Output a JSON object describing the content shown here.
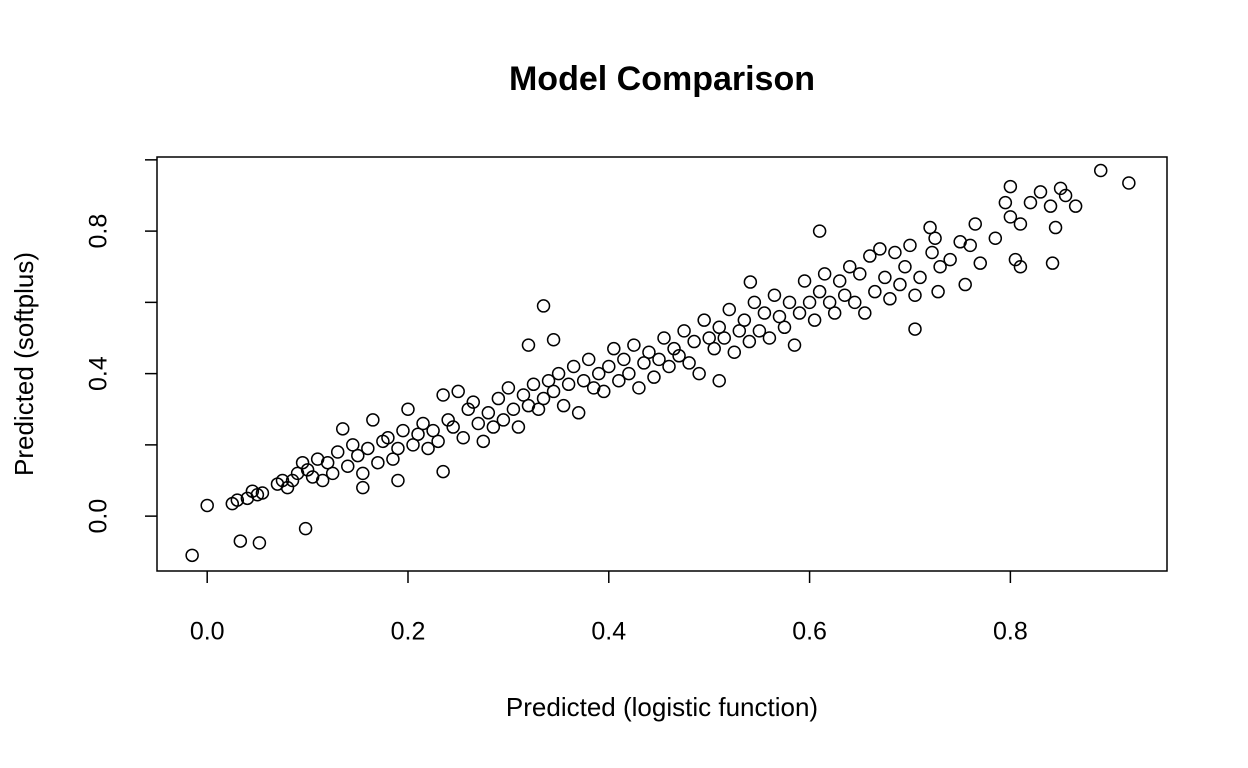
{
  "chart_data": {
    "type": "scatter",
    "title": "Model Comparison",
    "x_label": "Predicted (logistic function)",
    "y_label": "Predicted (softplus)",
    "color": "#000000",
    "xlim": [
      -0.05,
      0.956
    ],
    "ylim": [
      -0.154,
      1.008
    ],
    "xticks": [
      {
        "value": 0,
        "label": "0.0"
      },
      {
        "value": 0.2,
        "label": "0.2"
      },
      {
        "value": 0.4,
        "label": "0.4"
      },
      {
        "value": 0.6,
        "label": "0.6"
      },
      {
        "value": 0.8,
        "label": "0.8"
      }
    ],
    "yticks": [
      {
        "value": 0,
        "label": "0.0"
      },
      {
        "value": 0.2,
        "label": null
      },
      {
        "value": 0.4,
        "label": "0.4"
      },
      {
        "value": 0.6,
        "label": null
      },
      {
        "value": 0.8,
        "label": "0.8"
      },
      {
        "value": 1.0,
        "label": null
      }
    ],
    "x": [
      0.025,
      0.03,
      0.04,
      0.045,
      0.05,
      0.055,
      0.07,
      0.075,
      0.08,
      0.085,
      0.09,
      0.095,
      0.1,
      0.105,
      0.11,
      0.115,
      0.12,
      0.125,
      0.13,
      0.135,
      0.14,
      0.145,
      0.15,
      0.155,
      0.16,
      0.165,
      0.17,
      0.175,
      0.18,
      0.185,
      0.19,
      0.195,
      0.2,
      0.205,
      0.21,
      0.215,
      0.22,
      0.225,
      0.23,
      0.235,
      0.24,
      0.245,
      0.25,
      0.255,
      0.26,
      0.265,
      0.27,
      0.275,
      0.28,
      0.285,
      0.29,
      0.295,
      0.3,
      0.305,
      0.31,
      0.315,
      0.32,
      0.325,
      0.33,
      0.335,
      0.34,
      0.345,
      0.35,
      0.355,
      0.36,
      0.365,
      0.37,
      0.375,
      0.38,
      0.385,
      0.39,
      0.395,
      0.4,
      0.405,
      0.41,
      0.415,
      0.42,
      0.425,
      0.43,
      0.435,
      0.44,
      0.445,
      0.45,
      0.455,
      0.46,
      0.465,
      0.47,
      0.475,
      0.48,
      0.485,
      0.49,
      0.495,
      0.5,
      0.505,
      0.51,
      0.515,
      0.52,
      0.525,
      0.53,
      0.535,
      0.54,
      0.545,
      0.55,
      0.555,
      0.56,
      0.565,
      0.57,
      0.575,
      0.58,
      0.585,
      0.59,
      0.595,
      0.6,
      0.605,
      0.61,
      0.615,
      0.62,
      0.625,
      0.63,
      0.635,
      0.64,
      0.645,
      0.65,
      0.655,
      0.66,
      0.665,
      0.67,
      0.675,
      0.68,
      0.685,
      0.69,
      0.695,
      0.7,
      0.705,
      0.71,
      0.72,
      0.722,
      0.725,
      0.728,
      0.73,
      0.74,
      0.75,
      0.76,
      0.765,
      0.77,
      0.785,
      0.795,
      0.8,
      0.805,
      0.81,
      0.82,
      0.83,
      0.84,
      0.845,
      0.85,
      0.855,
      0.865,
      -0.015,
      0.0,
      0.033,
      0.052,
      0.098,
      0.335,
      0.61,
      0.705,
      0.89,
      0.918,
      0.8,
      0.842,
      0.81,
      0.755,
      0.51,
      0.235,
      0.155,
      0.19,
      0.345,
      0.32,
      0.541
    ],
    "y": [
      0.035,
      0.045,
      0.05,
      0.07,
      0.06,
      0.065,
      0.09,
      0.1,
      0.08,
      0.1,
      0.12,
      0.15,
      0.13,
      0.11,
      0.16,
      0.1,
      0.15,
      0.12,
      0.18,
      0.245,
      0.14,
      0.2,
      0.17,
      0.12,
      0.19,
      0.27,
      0.15,
      0.21,
      0.22,
      0.16,
      0.19,
      0.24,
      0.3,
      0.2,
      0.23,
      0.26,
      0.19,
      0.24,
      0.21,
      0.34,
      0.27,
      0.25,
      0.35,
      0.22,
      0.3,
      0.32,
      0.26,
      0.21,
      0.29,
      0.25,
      0.33,
      0.27,
      0.36,
      0.3,
      0.25,
      0.34,
      0.31,
      0.37,
      0.3,
      0.33,
      0.38,
      0.35,
      0.4,
      0.31,
      0.37,
      0.42,
      0.29,
      0.38,
      0.44,
      0.36,
      0.4,
      0.35,
      0.42,
      0.47,
      0.38,
      0.44,
      0.4,
      0.48,
      0.36,
      0.43,
      0.46,
      0.39,
      0.44,
      0.5,
      0.42,
      0.47,
      0.45,
      0.52,
      0.43,
      0.49,
      0.4,
      0.55,
      0.5,
      0.47,
      0.53,
      0.5,
      0.58,
      0.46,
      0.52,
      0.55,
      0.49,
      0.6,
      0.52,
      0.57,
      0.5,
      0.62,
      0.56,
      0.53,
      0.6,
      0.48,
      0.57,
      0.66,
      0.6,
      0.55,
      0.63,
      0.68,
      0.6,
      0.57,
      0.66,
      0.62,
      0.7,
      0.6,
      0.68,
      0.57,
      0.73,
      0.63,
      0.75,
      0.67,
      0.61,
      0.74,
      0.65,
      0.7,
      0.76,
      0.62,
      0.67,
      0.81,
      0.74,
      0.78,
      0.63,
      0.7,
      0.72,
      0.77,
      0.76,
      0.82,
      0.71,
      0.78,
      0.88,
      0.84,
      0.72,
      0.82,
      0.88,
      0.91,
      0.87,
      0.81,
      0.92,
      0.9,
      0.87,
      -0.11,
      0.03,
      -0.07,
      -0.075,
      -0.035,
      0.59,
      0.8,
      0.525,
      0.97,
      0.935,
      0.925,
      0.71,
      0.7,
      0.65,
      0.38,
      0.125,
      0.08,
      0.1,
      0.495,
      0.48,
      0.657
    ]
  }
}
